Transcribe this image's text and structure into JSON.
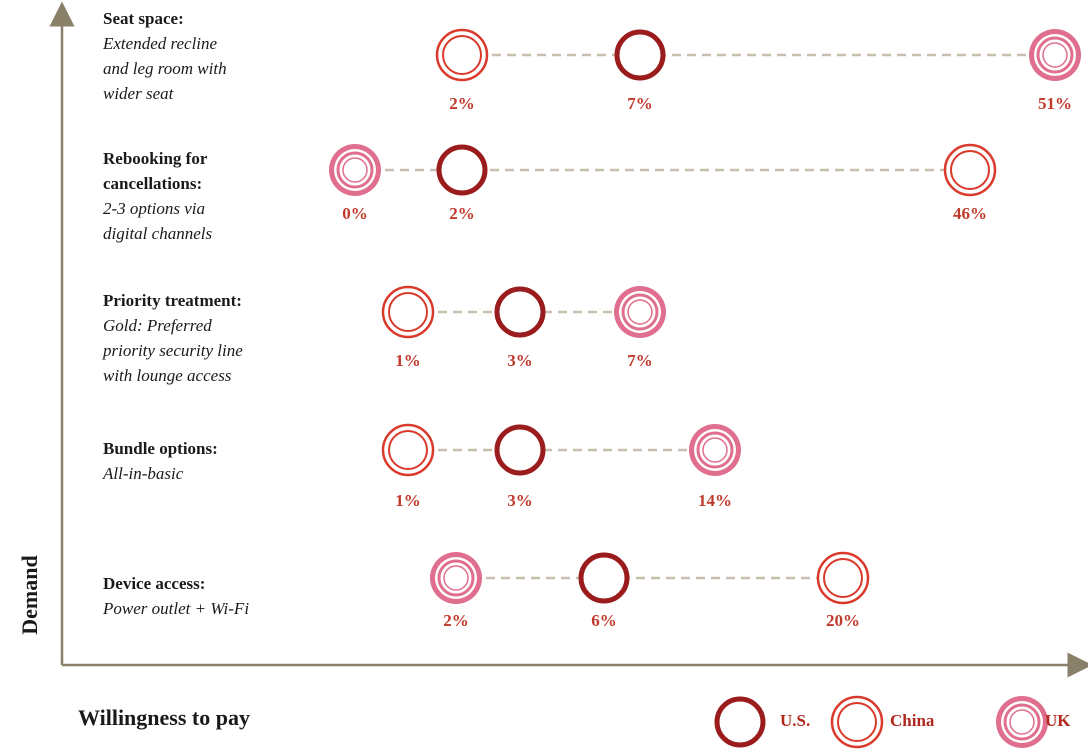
{
  "axes": {
    "y": "Demand",
    "x": "Willingness to pay"
  },
  "legend": [
    "U.S.",
    "China",
    "UK"
  ],
  "rows": [
    {
      "title": [
        "Seat space:"
      ],
      "description": [
        "Extended recline",
        "and leg room with",
        "wider seat"
      ],
      "values": [
        "7%",
        "2%",
        "51%"
      ]
    },
    {
      "title": [
        "Rebooking for",
        "cancellations:"
      ],
      "description": [
        "2-3 options via",
        "digital channels"
      ],
      "values": [
        "2%",
        "46%",
        "0%"
      ]
    },
    {
      "title": [
        "Priority treatment:"
      ],
      "description": [
        "Gold: Preferred",
        "priority security line",
        "with lounge access"
      ],
      "values": [
        "3%",
        "1%",
        "7%"
      ]
    },
    {
      "title": [
        "Bundle options:"
      ],
      "description": [
        "All-in-basic"
      ],
      "values": [
        "3%",
        "1%",
        "14%"
      ]
    },
    {
      "title": [
        "Device access:"
      ],
      "description": [
        "Power outlet + Wi-Fi"
      ],
      "values": [
        "6%",
        "20%",
        "2%"
      ]
    }
  ]
}
